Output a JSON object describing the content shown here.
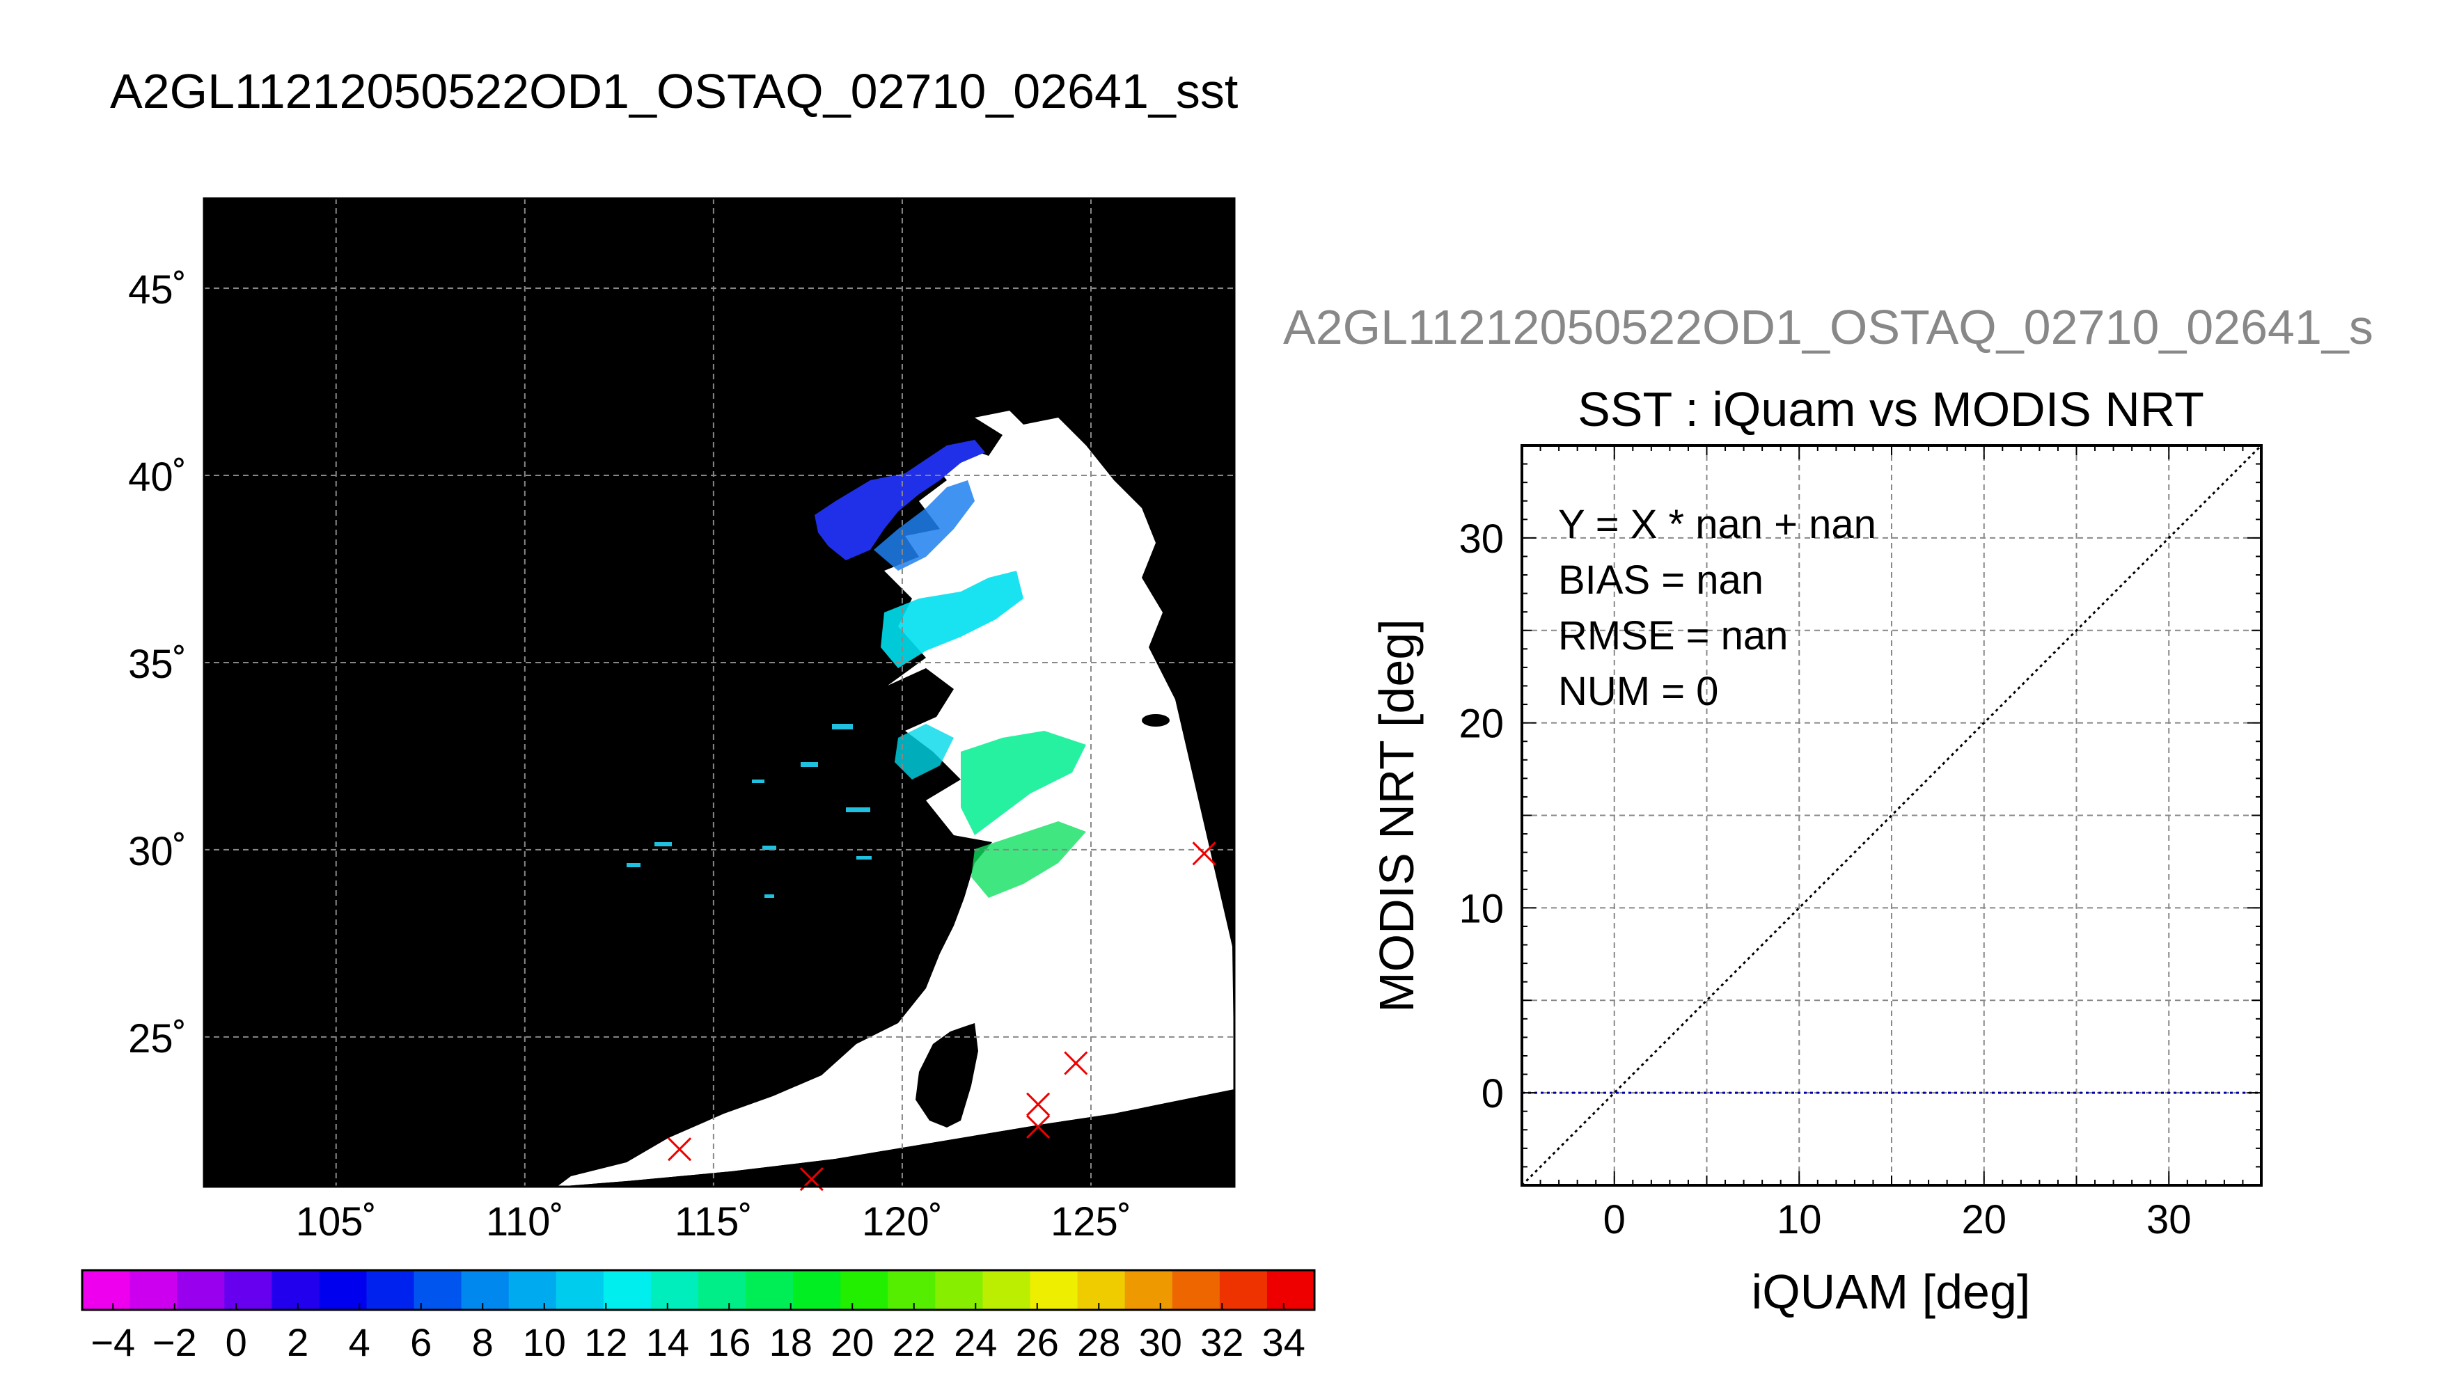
{
  "page_title": "A2GL11212050522OD1_OSTAQ_02710_02641_sst",
  "chart_data": [
    {
      "type": "map",
      "title": "",
      "lon_ticks": [
        105,
        110,
        115,
        120,
        125
      ],
      "lat_ticks": [
        45,
        40,
        35,
        30,
        25
      ],
      "lon_tick_labels": [
        "105˚",
        "110˚",
        "115˚",
        "120˚",
        "125˚"
      ],
      "lat_tick_labels": [
        "45˚",
        "40˚",
        "35˚",
        "30˚",
        "25˚"
      ],
      "lon_range": [
        101.5,
        128.8
      ],
      "lat_range": [
        21.0,
        47.4
      ],
      "grid": true,
      "colormap_palette": [
        "#ee00ee",
        "#cc00ee",
        "#9900ee",
        "#6600ee",
        "#2200ee",
        "#0000ee",
        "#0022ee",
        "#0055ee",
        "#0088ee",
        "#00aaee",
        "#00ccee",
        "#00eeee",
        "#00eebb",
        "#00ee88",
        "#00ee55",
        "#00ee22",
        "#22ee00",
        "#55ee00",
        "#88ee00",
        "#bbee00",
        "#eeee00",
        "#eecc00",
        "#ee9900",
        "#ee6600",
        "#ee3300",
        "#ee0000"
      ],
      "colorbar": {
        "ticks": [
          -4,
          -2,
          0,
          2,
          4,
          6,
          8,
          10,
          12,
          14,
          16,
          18,
          20,
          22,
          24,
          26,
          28,
          30,
          32,
          34
        ],
        "tick_labels": [
          "−4",
          "−2",
          "0",
          "2",
          "4",
          "6",
          "8",
          "10",
          "12",
          "14",
          "16",
          "18",
          "20",
          "22",
          "24",
          "26",
          "28",
          "30",
          "32",
          "34"
        ],
        "range": [
          -5,
          35
        ]
      },
      "markers": [
        {
          "lon": 128.0,
          "lat": 29.9
        },
        {
          "lon": 124.6,
          "lat": 24.3
        },
        {
          "lon": 123.6,
          "lat": 23.2
        },
        {
          "lon": 123.6,
          "lat": 22.6
        },
        {
          "lon": 114.1,
          "lat": 22.0
        },
        {
          "lon": 117.6,
          "lat": 21.2
        }
      ],
      "marker_color": "#ee0000"
    },
    {
      "type": "scatter",
      "subtitle": "A2GL11212050522OD1_OSTAQ_02710_02641_s",
      "title": "SST : iQuam vs MODIS NRT",
      "xlabel": "iQUAM [deg]",
      "ylabel": "MODIS NRT [deg]",
      "xlim": [
        -5,
        35
      ],
      "ylim": [
        -5,
        35
      ],
      "xticks": [
        0,
        10,
        20,
        30
      ],
      "yticks": [
        0,
        10,
        20,
        30
      ],
      "grid": true,
      "points": [],
      "reference_lines": [
        {
          "name": "",
          "kind": "y = x",
          "style": "dotted",
          "color": "#000000"
        },
        {
          "name": "",
          "kind": "y = 0",
          "style": "dotted",
          "color": "#0000aa"
        }
      ],
      "annotations": [
        "Y = X * nan + nan",
        "BIAS = nan",
        "RMSE = nan",
        "NUM = 0"
      ]
    }
  ]
}
